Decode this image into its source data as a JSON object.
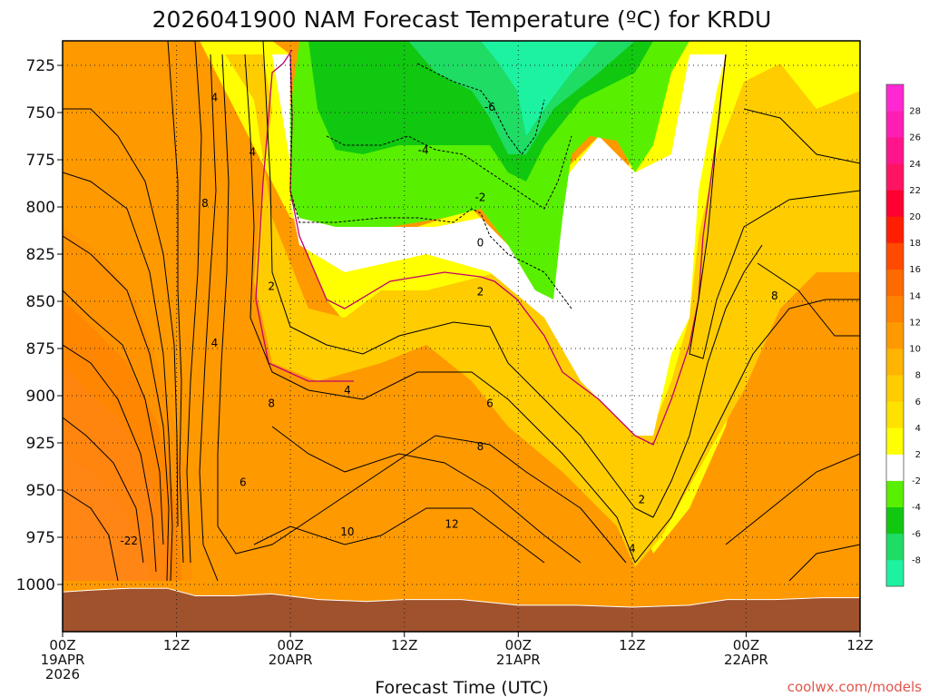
{
  "title": "2026041900 NAM Forecast Temperature (ºC) for KRDU",
  "xlabel": "Forecast Time (UTC)",
  "credit": "coolwx.com/models",
  "chart_data": {
    "type": "contour",
    "title": "2026041900 NAM Forecast Temperature (ºC) for KRDU",
    "xlabel": "Forecast Time (UTC)",
    "x_unit": "forecast hour from 2026041900",
    "x_range": [
      0,
      84
    ],
    "y_range": [
      1025,
      712
    ],
    "y_ticks": [
      725,
      750,
      775,
      800,
      825,
      850,
      875,
      900,
      925,
      950,
      975,
      1000
    ],
    "x_ticks": [
      {
        "hour": 0,
        "lines": [
          "00Z",
          "19APR",
          "2026"
        ]
      },
      {
        "hour": 12,
        "lines": [
          "12Z"
        ]
      },
      {
        "hour": 24,
        "lines": [
          "00Z",
          "20APR"
        ]
      },
      {
        "hour": 36,
        "lines": [
          "12Z"
        ]
      },
      {
        "hour": 48,
        "lines": [
          "00Z",
          "21APR"
        ]
      },
      {
        "hour": 60,
        "lines": [
          "12Z"
        ]
      },
      {
        "hour": 72,
        "lines": [
          "00Z",
          "22APR"
        ]
      },
      {
        "hour": 84,
        "lines": [
          "12Z"
        ]
      }
    ],
    "grid": true,
    "colorbar": {
      "placement": "right",
      "levels": [
        -10,
        -8,
        -6,
        -4,
        -2,
        2,
        4,
        6,
        8,
        10,
        12,
        14,
        16,
        18,
        20,
        22,
        24,
        26,
        28,
        30
      ],
      "tick_labels": [
        "-8",
        "-6",
        "-4",
        "-2",
        "2",
        "4",
        "6",
        "8",
        "10",
        "12",
        "14",
        "16",
        "18",
        "20",
        "22",
        "24",
        "26",
        "28"
      ],
      "colors": [
        "#1cf2a0",
        "#1edc64",
        "#10c810",
        "#58f000",
        "#ffffff",
        "#ffff00",
        "#ffe100",
        "#ffcc00",
        "#ffb400",
        "#ff9900",
        "#ff8200",
        "#ff6a00",
        "#ff4a00",
        "#ff1e00",
        "#ff0030",
        "#ff1464",
        "#ff148c",
        "#ff1eb4",
        "#ff28d2"
      ]
    },
    "zero_line_color": "#c0006e",
    "contour_labels": [
      {
        "value": "4",
        "hour": 16,
        "p": 742
      },
      {
        "value": "4",
        "hour": 20,
        "p": 771
      },
      {
        "value": "8",
        "hour": 15,
        "p": 798
      },
      {
        "value": "2",
        "hour": 22,
        "p": 842
      },
      {
        "value": "4",
        "hour": 16,
        "p": 872
      },
      {
        "value": "8",
        "hour": 22,
        "p": 904
      },
      {
        "value": "6",
        "hour": 19,
        "p": 946
      },
      {
        "value": "4",
        "hour": 30,
        "p": 897
      },
      {
        "value": "10",
        "hour": 30,
        "p": 972
      },
      {
        "value": "-6",
        "hour": 45,
        "p": 747
      },
      {
        "value": "-4",
        "hour": 38,
        "p": 770
      },
      {
        "value": "-2",
        "hour": 44,
        "p": 795
      },
      {
        "value": "0",
        "hour": 44,
        "p": 819
      },
      {
        "value": "2",
        "hour": 44,
        "p": 845
      },
      {
        "value": "6",
        "hour": 45,
        "p": 904
      },
      {
        "value": "8",
        "hour": 44,
        "p": 927
      },
      {
        "value": "12",
        "hour": 41,
        "p": 968
      },
      {
        "value": "-22",
        "hour": 7,
        "p": 977
      },
      {
        "value": "2",
        "hour": 61,
        "p": 955
      },
      {
        "value": "4",
        "hour": 60,
        "p": 981
      },
      {
        "value": "8",
        "hour": 75,
        "p": 847
      }
    ],
    "surface_pressure": [
      {
        "hour": 0,
        "p": 1004
      },
      {
        "hour": 3,
        "p": 1003
      },
      {
        "hour": 7,
        "p": 1002
      },
      {
        "hour": 11,
        "p": 1002
      },
      {
        "hour": 14,
        "p": 1006
      },
      {
        "hour": 18,
        "p": 1006
      },
      {
        "hour": 22,
        "p": 1005
      },
      {
        "hour": 27,
        "p": 1008
      },
      {
        "hour": 32,
        "p": 1009
      },
      {
        "hour": 36,
        "p": 1008
      },
      {
        "hour": 42,
        "p": 1008
      },
      {
        "hour": 48,
        "p": 1011
      },
      {
        "hour": 54,
        "p": 1011
      },
      {
        "hour": 60,
        "p": 1012
      },
      {
        "hour": 66,
        "p": 1011
      },
      {
        "hour": 70,
        "p": 1008
      },
      {
        "hour": 75,
        "p": 1008
      },
      {
        "hour": 80,
        "p": 1007
      },
      {
        "hour": 84,
        "p": 1007
      }
    ],
    "ground_color": "#a0522d"
  }
}
